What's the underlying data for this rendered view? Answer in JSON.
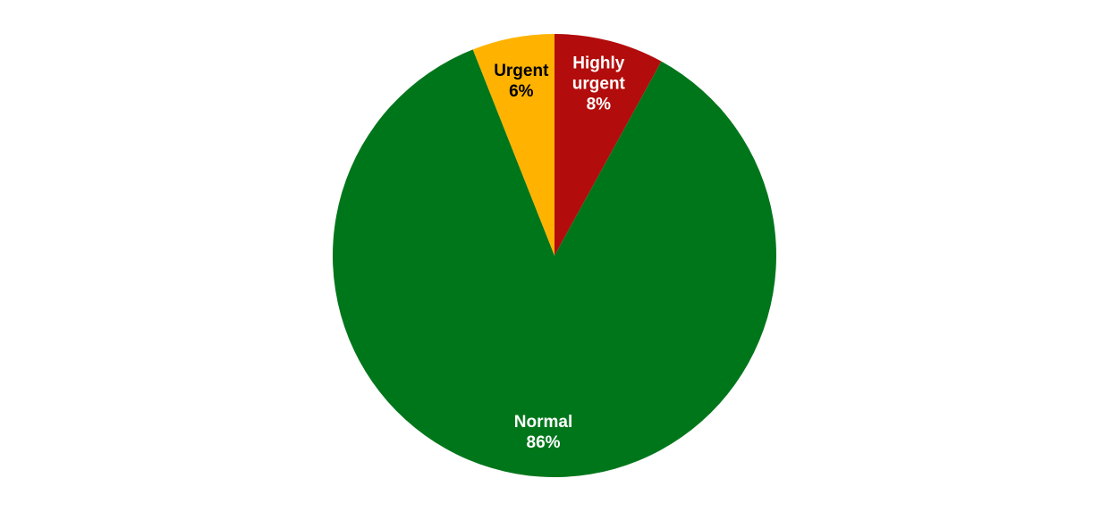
{
  "chart_data": {
    "type": "pie",
    "categories": [
      "Highly urgent",
      "Normal",
      "Urgent"
    ],
    "values": [
      8,
      86,
      6
    ],
    "value_labels": [
      "8%",
      "86%",
      "6%"
    ],
    "colors": [
      "#b30c0c",
      "#00761a",
      "#ffb300"
    ],
    "label_colors": [
      "#ffffff",
      "#ffffff",
      "#000000"
    ]
  }
}
